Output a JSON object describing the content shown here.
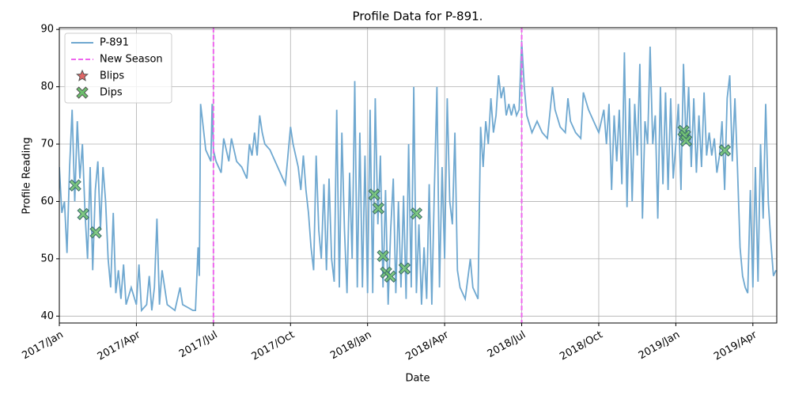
{
  "chart_data": {
    "type": "line",
    "title": "Profile Data for P-891.",
    "x_label": "Date",
    "y_label": "Profile Reading",
    "xlim": [
      0,
      27.93
    ],
    "ylim": [
      38.8,
      90.3
    ],
    "xticks": [
      {
        "value": 0,
        "label": "2017/Jan"
      },
      {
        "value": 3,
        "label": "2017/Apr"
      },
      {
        "value": 6,
        "label": "2017/Jul"
      },
      {
        "value": 9,
        "label": "2017/Oct"
      },
      {
        "value": 12,
        "label": "2018/Jan"
      },
      {
        "value": 15,
        "label": "2018/Apr"
      },
      {
        "value": 18,
        "label": "2018/Jul"
      },
      {
        "value": 21,
        "label": "2018/Oct"
      },
      {
        "value": 24,
        "label": "2019/Jan"
      },
      {
        "value": 27,
        "label": "2019/Apr"
      }
    ],
    "yticks": [
      40,
      50,
      60,
      70,
      80,
      90
    ],
    "grid": true,
    "legend": "upper left",
    "series": [
      {
        "name": "P-891",
        "color": "#6fa8d0",
        "x": [
          0,
          0.1,
          0.2,
          0.3,
          0.4,
          0.5,
          0.6,
          0.7,
          0.8,
          0.9,
          1.0,
          1.1,
          1.2,
          1.3,
          1.4,
          1.5,
          1.6,
          1.7,
          1.8,
          1.9,
          2.0,
          2.1,
          2.2,
          2.3,
          2.4,
          2.5,
          2.6,
          2.8,
          3.0,
          3.1,
          3.2,
          3.4,
          3.5,
          3.6,
          3.7,
          3.8,
          3.9,
          4.0,
          4.2,
          4.5,
          4.7,
          4.8,
          5.0,
          5.2,
          5.3,
          5.4,
          5.45,
          5.5,
          5.6,
          5.7,
          5.9,
          5.95,
          6.0,
          6.1,
          6.3,
          6.4,
          6.6,
          6.7,
          6.9,
          7.1,
          7.3,
          7.4,
          7.5,
          7.6,
          7.7,
          7.8,
          7.9,
          8.0,
          8.2,
          8.4,
          8.6,
          8.8,
          8.9,
          9.0,
          9.1,
          9.3,
          9.4,
          9.5,
          9.6,
          9.7,
          9.8,
          9.9,
          10.0,
          10.1,
          10.2,
          10.3,
          10.4,
          10.5,
          10.6,
          10.7,
          10.8,
          10.9,
          11.0,
          11.1,
          11.2,
          11.3,
          11.4,
          11.5,
          11.6,
          11.7,
          11.8,
          11.9,
          12.0,
          12.1,
          12.2,
          12.3,
          12.4,
          12.5,
          12.6,
          12.7,
          12.8,
          12.9,
          13.0,
          13.1,
          13.2,
          13.3,
          13.4,
          13.5,
          13.6,
          13.7,
          13.8,
          13.9,
          14.0,
          14.1,
          14.2,
          14.3,
          14.4,
          14.5,
          14.6,
          14.7,
          14.8,
          14.9,
          15.0,
          15.1,
          15.2,
          15.3,
          15.4,
          15.5,
          15.6,
          15.8,
          16.0,
          16.1,
          16.3,
          16.4,
          16.5,
          16.6,
          16.7,
          16.8,
          16.9,
          17.0,
          17.1,
          17.2,
          17.3,
          17.4,
          17.5,
          17.6,
          17.7,
          17.8,
          17.9,
          18.0,
          18.1,
          18.2,
          18.4,
          18.6,
          18.8,
          19.0,
          19.2,
          19.3,
          19.5,
          19.7,
          19.8,
          19.9,
          20.1,
          20.3,
          20.4,
          20.6,
          20.8,
          21.0,
          21.2,
          21.3,
          21.4,
          21.5,
          21.6,
          21.7,
          21.8,
          21.9,
          22.0,
          22.1,
          22.2,
          22.3,
          22.4,
          22.5,
          22.6,
          22.7,
          22.8,
          22.9,
          23.0,
          23.1,
          23.2,
          23.3,
          23.4,
          23.5,
          23.6,
          23.7,
          23.8,
          23.9,
          24.0,
          24.1,
          24.2,
          24.3,
          24.4,
          24.5,
          24.6,
          24.7,
          24.8,
          24.9,
          25.0,
          25.1,
          25.2,
          25.3,
          25.4,
          25.5,
          25.6,
          25.7,
          25.8,
          25.9,
          26.0,
          26.1,
          26.2,
          26.3,
          26.4,
          26.5,
          26.6,
          26.7,
          26.8,
          26.9,
          27.0,
          27.1,
          27.2,
          27.3,
          27.4,
          27.5,
          27.6,
          27.7,
          27.8,
          27.9
        ],
        "values": [
          66,
          58,
          60,
          51,
          66,
          76,
          60,
          74,
          64,
          70,
          58,
          50,
          66,
          48,
          62,
          67,
          55,
          66,
          60,
          50,
          45,
          58,
          44,
          48,
          43,
          49,
          42,
          45,
          42,
          49,
          41,
          42,
          47,
          41,
          45,
          57,
          42,
          48,
          42,
          41,
          45,
          42,
          41.5,
          41,
          41,
          52,
          47,
          77,
          73,
          69,
          67,
          77,
          69,
          67,
          65,
          71,
          67,
          71,
          67,
          66,
          64,
          70,
          68,
          72,
          68,
          75,
          72,
          70,
          69,
          67,
          65,
          63,
          68,
          73,
          70,
          66,
          62,
          68,
          62,
          58,
          52,
          48,
          68,
          55,
          50,
          63,
          48,
          64,
          50,
          46,
          76,
          45,
          72,
          55,
          44,
          65,
          50,
          81,
          45,
          72,
          45,
          68,
          44,
          76,
          44,
          78,
          56,
          68,
          45,
          62,
          42,
          55,
          64,
          44,
          60,
          45,
          61,
          43,
          70,
          45,
          80,
          44,
          56,
          42,
          52,
          43,
          63,
          42,
          62,
          80,
          45,
          66,
          50,
          78,
          60,
          56,
          72,
          48,
          45,
          43,
          50,
          45,
          43,
          73,
          66,
          74,
          70,
          78,
          72,
          75,
          82,
          78,
          80,
          75,
          77,
          75,
          77,
          75,
          76,
          88,
          80,
          75,
          72,
          74,
          72,
          71,
          80,
          76,
          73,
          72,
          78,
          74,
          72,
          71,
          79,
          76,
          74,
          72,
          76,
          70,
          77,
          62,
          75,
          67,
          76,
          63,
          86,
          59,
          78,
          60,
          77,
          68,
          84,
          57,
          74,
          70,
          87,
          70,
          75,
          57,
          80,
          63,
          79,
          62,
          78,
          64,
          70,
          77,
          62,
          84,
          70,
          80,
          66,
          78,
          65,
          75,
          66,
          79,
          68,
          72,
          68,
          71,
          65,
          68,
          74,
          62,
          78,
          82,
          67,
          78,
          66,
          52,
          47,
          45,
          44,
          62,
          45,
          66,
          46,
          70,
          57,
          77,
          60,
          53,
          47,
          48
        ]
      }
    ],
    "vlines": {
      "name": "New Season",
      "color": "#ee66ee",
      "x": [
        6,
        18
      ]
    },
    "scatter": [
      {
        "name": "Blips",
        "color": "#e06666",
        "marker": "star",
        "x": [],
        "values": []
      },
      {
        "name": "Dips",
        "color": "#6cc06c",
        "marker": "X",
        "x": [
          0.62,
          0.93,
          1.42,
          12.26,
          12.42,
          12.6,
          12.72,
          12.88,
          13.44,
          13.9,
          24.3,
          24.36,
          24.4,
          25.91
        ],
        "values": [
          62.8,
          57.8,
          54.6,
          61.2,
          58.8,
          50.5,
          47.6,
          46.9,
          48.3,
          57.9,
          72.3,
          71.5,
          70.6,
          68.9
        ]
      }
    ]
  }
}
